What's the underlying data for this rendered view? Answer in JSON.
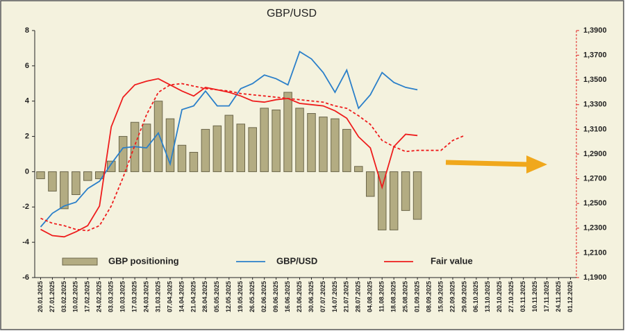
{
  "chart_data": {
    "type": "bar",
    "title": "GBP/USD",
    "categories": [
      "20.01.2025",
      "27.01.2025",
      "03.02.2025",
      "10.02.2025",
      "17.02.2025",
      "24.02.2025",
      "03.03.2025",
      "10.03.2025",
      "17.03.2025",
      "24.03.2025",
      "31.03.2025",
      "07.04.2025",
      "14.04.2025",
      "21.04.2025",
      "28.04.2025",
      "05.05.2025",
      "12.05.2025",
      "19.05.2025",
      "26.05.2025",
      "02.06.2025",
      "09.06.2025",
      "16.06.2025",
      "23.06.2025",
      "30.06.2025",
      "07.07.2025",
      "14.07.2025",
      "21.07.2025",
      "28.07.2025",
      "04.08.2025",
      "11.08.2025",
      "18.08.2025",
      "25.08.2025",
      "01.09.2025",
      "08.09.2025",
      "15.09.2025",
      "22.09.2025",
      "29.09.2025",
      "06.10.2025",
      "13.10.2025",
      "20.10.2025",
      "27.10.2025",
      "03.11.2025",
      "10.11.2025",
      "17.11.2025",
      "24.11.2025",
      "01.12.2025"
    ],
    "series": [
      {
        "name": "GBP positioning",
        "type": "bar",
        "color": "#b3ac82",
        "values": [
          -0.4,
          -1.1,
          -2.1,
          -1.3,
          -0.5,
          -0.4,
          0.6,
          2.0,
          2.8,
          2.7,
          4.0,
          3.0,
          1.5,
          1.1,
          2.4,
          2.6,
          3.2,
          2.7,
          2.5,
          3.6,
          3.5,
          4.5,
          3.6,
          3.3,
          3.1,
          3.0,
          2.4,
          0.3,
          -1.4,
          -3.3,
          -3.3,
          -2.2,
          -2.7,
          null,
          null,
          null,
          null,
          null,
          null,
          null,
          null,
          null,
          null,
          null,
          null,
          null
        ]
      },
      {
        "name": "GBP/USD",
        "type": "line",
        "axis": "y2",
        "color": "#2a7fc9",
        "values": [
          1.231,
          1.242,
          1.248,
          1.251,
          1.262,
          1.268,
          1.282,
          1.295,
          1.296,
          1.295,
          1.307,
          1.282,
          1.326,
          1.329,
          1.341,
          1.329,
          1.329,
          1.343,
          1.347,
          1.354,
          1.351,
          1.346,
          1.373,
          1.367,
          1.356,
          1.34,
          1.358,
          1.327,
          1.338,
          1.356,
          1.348,
          1.344,
          1.342,
          null,
          null,
          null,
          null,
          null,
          null,
          null,
          null,
          null,
          null,
          null,
          null,
          null
        ]
      },
      {
        "name": "Fair value",
        "type": "line",
        "axis": "y2",
        "color": "#ee1c1c",
        "values": [
          1.229,
          1.224,
          1.223,
          1.227,
          1.232,
          1.248,
          1.312,
          1.336,
          1.346,
          1.349,
          1.351,
          1.346,
          1.341,
          1.337,
          1.344,
          1.342,
          1.34,
          1.337,
          1.333,
          1.332,
          1.334,
          1.335,
          1.331,
          1.33,
          1.329,
          1.325,
          1.319,
          1.304,
          1.295,
          1.263,
          1.296,
          1.306,
          1.305,
          null,
          null,
          null,
          null,
          null,
          null,
          null,
          null,
          null,
          null,
          null,
          null,
          null
        ]
      },
      {
        "type": "line",
        "axis": "y2",
        "dash": true,
        "color": "#ee1c1c",
        "values": [
          1.238,
          1.234,
          1.232,
          1.229,
          1.228,
          1.232,
          1.248,
          1.271,
          1.297,
          1.322,
          1.34,
          1.346,
          1.347,
          1.345,
          1.343,
          1.342,
          1.341,
          1.339,
          1.338,
          1.337,
          1.336,
          1.335,
          1.334,
          1.333,
          1.332,
          1.329,
          1.327,
          1.321,
          1.314,
          1.301,
          1.296,
          1.292,
          1.293,
          1.293,
          1.293,
          1.301,
          1.305,
          null,
          null,
          null,
          null,
          null,
          null,
          null,
          null,
          null
        ]
      }
    ],
    "ylim": [
      -6,
      8
    ],
    "yticks": [
      -6,
      -4,
      -2,
      0,
      2,
      4,
      6,
      8
    ],
    "y2lim": [
      1.19,
      1.39
    ],
    "y2ticks": [
      {
        "value": 1.19,
        "label": "1,1900"
      },
      {
        "value": 1.21,
        "label": "1,2100"
      },
      {
        "value": 1.23,
        "label": "1,2300"
      },
      {
        "value": 1.25,
        "label": "1,2500"
      },
      {
        "value": 1.27,
        "label": "1,2700"
      },
      {
        "value": 1.29,
        "label": "1,2900"
      },
      {
        "value": 1.31,
        "label": "1,3100"
      },
      {
        "value": 1.33,
        "label": "1,3300"
      },
      {
        "value": 1.35,
        "label": "1,3500"
      },
      {
        "value": 1.37,
        "label": "1,3700"
      },
      {
        "value": 1.39,
        "label": "1,3900"
      }
    ],
    "grid": false
  }
}
